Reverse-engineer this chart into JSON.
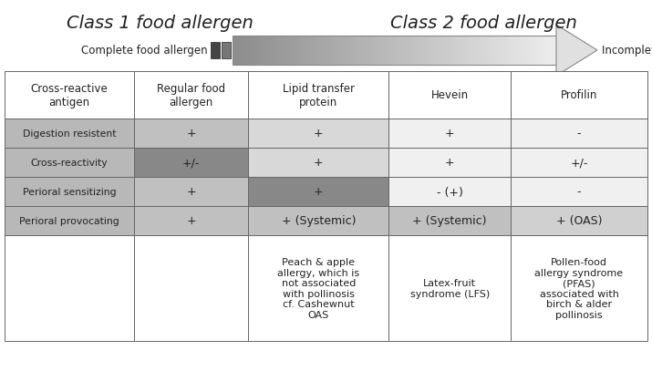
{
  "title_left": "Class 1 food allergen",
  "title_right": "Class 2 food allergen",
  "arrow_label_left": "Complete food allergen",
  "arrow_label_right": "Incomplete food allergen",
  "col_headers": [
    "Cross-reactive\nantigen",
    "Regular food\nallergen",
    "Lipid transfer\nprotein",
    "Hevein",
    "Profilin"
  ],
  "row_headers": [
    "Digestion resistent",
    "Cross-reactivity",
    "Perioral sensitizing",
    "Perioral provocating"
  ],
  "cell_data": [
    [
      "+",
      "+",
      "+",
      "-"
    ],
    [
      "+/-",
      "+",
      "+",
      "+/-"
    ],
    [
      "+",
      "+",
      "- (+)",
      "-"
    ],
    [
      "+",
      "+ (Systemic)",
      "+ (Systemic)",
      "+ (OAS)"
    ]
  ],
  "bottom_data": [
    "",
    "",
    "Peach & apple\nallergy, which is\nnot associated\nwith pollinosis\ncf. Cashewnut\nOAS",
    "Latex-fruit\nsyndrome (LFS)",
    "Pollen-food\nallergy syndrome\n(PFAS)\nassociated with\nbirch & alder\npollinosis"
  ],
  "row_data_colors": [
    [
      "#b8b8b8",
      "#c0c0c0",
      "#d8d8d8",
      "#f0f0f0",
      "#f0f0f0"
    ],
    [
      "#b8b8b8",
      "#888888",
      "#d8d8d8",
      "#f0f0f0",
      "#f0f0f0"
    ],
    [
      "#b8b8b8",
      "#c0c0c0",
      "#888888",
      "#f0f0f0",
      "#f0f0f0"
    ],
    [
      "#b8b8b8",
      "#c0c0c0",
      "#c0c0c0",
      "#c0c0c0",
      "#d0d0d0"
    ]
  ],
  "bg_white": "#ffffff",
  "text_color": "#222222",
  "border_color": "#666666"
}
